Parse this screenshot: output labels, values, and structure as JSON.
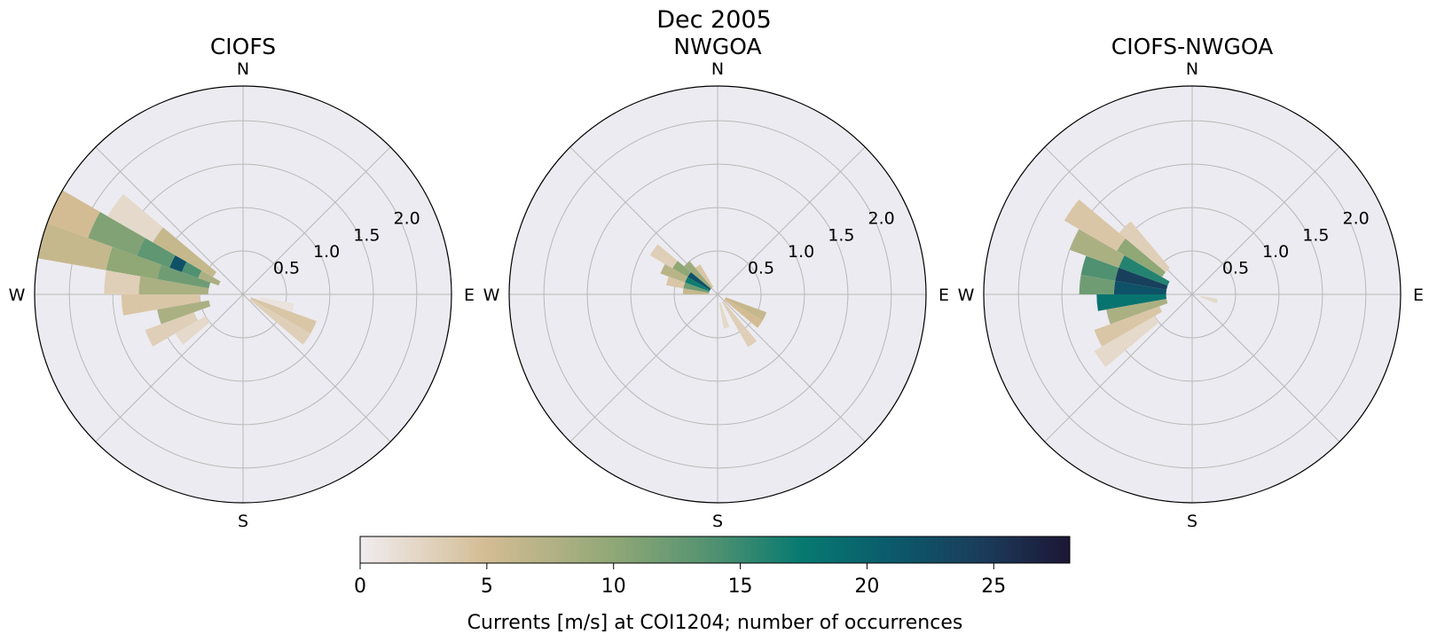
{
  "title": "Dec 2005",
  "colors": {
    "face": "#ecebf1",
    "grid": "#b8b8b8",
    "colormap": [
      "#f0ecef",
      "#d3bc93",
      "#8fa776",
      "#4f9171",
      "#077a70",
      "#0b5a6c",
      "#1b3b5a",
      "#1d1635"
    ]
  },
  "chart_data": [
    {
      "type": "heatmap",
      "subtype": "polar-rose",
      "title": "CIOFS",
      "compass_labels": [
        "N",
        "E",
        "S",
        "W"
      ],
      "radial_ticks": [
        "0.5",
        "1.0",
        "1.5",
        "2.0"
      ],
      "rlim": [
        0,
        2.4
      ],
      "r_bin": 0.1,
      "theta_bin_deg": 10,
      "cells": [
        {
          "dir": 295,
          "speed_from": 1.9,
          "speed_to": 2.4,
          "count": 5
        },
        {
          "dir": 295,
          "speed_from": 1.3,
          "speed_to": 1.9,
          "count": 11
        },
        {
          "dir": 295,
          "speed_from": 0.9,
          "speed_to": 1.3,
          "count": 13
        },
        {
          "dir": 295,
          "speed_from": 0.75,
          "speed_to": 0.9,
          "count": 22
        },
        {
          "dir": 295,
          "speed_from": 0.55,
          "speed_to": 0.75,
          "count": 14
        },
        {
          "dir": 295,
          "speed_from": 0.3,
          "speed_to": 0.55,
          "count": 8
        },
        {
          "dir": 285,
          "speed_from": 1.6,
          "speed_to": 2.4,
          "count": 6
        },
        {
          "dir": 285,
          "speed_from": 1.0,
          "speed_to": 1.6,
          "count": 10
        },
        {
          "dir": 285,
          "speed_from": 0.4,
          "speed_to": 1.0,
          "count": 12
        },
        {
          "dir": 275,
          "speed_from": 1.2,
          "speed_to": 1.6,
          "count": 3
        },
        {
          "dir": 275,
          "speed_from": 0.4,
          "speed_to": 1.2,
          "count": 8
        },
        {
          "dir": 265,
          "speed_from": 0.5,
          "speed_to": 1.4,
          "count": 4
        },
        {
          "dir": 255,
          "speed_from": 0.4,
          "speed_to": 1.0,
          "count": 8
        },
        {
          "dir": 245,
          "speed_from": 0.6,
          "speed_to": 1.2,
          "count": 3
        },
        {
          "dir": 235,
          "speed_from": 0.5,
          "speed_to": 0.9,
          "count": 2
        },
        {
          "dir": 305,
          "speed_from": 1.2,
          "speed_to": 1.8,
          "count": 2
        },
        {
          "dir": 305,
          "speed_from": 0.4,
          "speed_to": 1.2,
          "count": 6
        },
        {
          "dir": 125,
          "speed_from": 0.1,
          "speed_to": 0.9,
          "count": 3
        },
        {
          "dir": 115,
          "speed_from": 0.1,
          "speed_to": 0.9,
          "count": 4
        },
        {
          "dir": 105,
          "speed_from": 0.2,
          "speed_to": 0.6,
          "count": 1
        }
      ]
    },
    {
      "type": "heatmap",
      "subtype": "polar-rose",
      "title": "NWGOA",
      "compass_labels": [
        "N",
        "E",
        "S",
        "W"
      ],
      "radial_ticks": [
        "0.5",
        "1.0",
        "1.5",
        "2.0"
      ],
      "rlim": [
        0,
        2.4
      ],
      "r_bin": 0.1,
      "theta_bin_deg": 10,
      "cells": [
        {
          "dir": 305,
          "speed_from": 0.1,
          "speed_to": 0.4,
          "count": 22
        },
        {
          "dir": 305,
          "speed_from": 0.4,
          "speed_to": 0.6,
          "count": 10
        },
        {
          "dir": 305,
          "speed_from": 0.6,
          "speed_to": 0.9,
          "count": 3
        },
        {
          "dir": 295,
          "speed_from": 0.1,
          "speed_to": 0.4,
          "count": 17
        },
        {
          "dir": 295,
          "speed_from": 0.4,
          "speed_to": 0.7,
          "count": 7
        },
        {
          "dir": 285,
          "speed_from": 0.1,
          "speed_to": 0.4,
          "count": 12
        },
        {
          "dir": 285,
          "speed_from": 0.4,
          "speed_to": 0.6,
          "count": 4
        },
        {
          "dir": 275,
          "speed_from": 0.1,
          "speed_to": 0.4,
          "count": 6
        },
        {
          "dir": 315,
          "speed_from": 0.1,
          "speed_to": 0.5,
          "count": 9
        },
        {
          "dir": 325,
          "speed_from": 0.1,
          "speed_to": 0.4,
          "count": 4
        },
        {
          "dir": 115,
          "speed_from": 0.1,
          "speed_to": 0.6,
          "count": 6
        },
        {
          "dir": 125,
          "speed_from": 0.1,
          "speed_to": 0.6,
          "count": 5
        },
        {
          "dir": 145,
          "speed_from": 0.1,
          "speed_to": 0.7,
          "count": 3
        },
        {
          "dir": 165,
          "speed_from": 0.1,
          "speed_to": 0.4,
          "count": 2
        }
      ]
    },
    {
      "type": "heatmap",
      "subtype": "polar-rose",
      "title": "CIOFS-NWGOA",
      "compass_labels": [
        "N",
        "E",
        "S",
        "W"
      ],
      "radial_ticks": [
        "0.5",
        "1.0",
        "1.5",
        "2.0"
      ],
      "rlim": [
        0,
        2.4
      ],
      "r_bin": 0.1,
      "theta_bin_deg": 10,
      "cells": [
        {
          "dir": 285,
          "speed_from": 0.3,
          "speed_to": 0.9,
          "count": 24
        },
        {
          "dir": 285,
          "speed_from": 0.9,
          "speed_to": 1.3,
          "count": 14
        },
        {
          "dir": 275,
          "speed_from": 0.3,
          "speed_to": 0.9,
          "count": 22
        },
        {
          "dir": 275,
          "speed_from": 0.9,
          "speed_to": 1.3,
          "count": 12
        },
        {
          "dir": 265,
          "speed_from": 0.3,
          "speed_to": 1.1,
          "count": 18
        },
        {
          "dir": 295,
          "speed_from": 0.3,
          "speed_to": 0.9,
          "count": 16
        },
        {
          "dir": 295,
          "speed_from": 0.9,
          "speed_to": 1.5,
          "count": 8
        },
        {
          "dir": 305,
          "speed_from": 0.4,
          "speed_to": 1.0,
          "count": 10
        },
        {
          "dir": 305,
          "speed_from": 1.0,
          "speed_to": 1.7,
          "count": 4
        },
        {
          "dir": 255,
          "speed_from": 0.3,
          "speed_to": 1.0,
          "count": 8
        },
        {
          "dir": 245,
          "speed_from": 0.4,
          "speed_to": 1.2,
          "count": 4
        },
        {
          "dir": 235,
          "speed_from": 0.5,
          "speed_to": 1.3,
          "count": 2
        },
        {
          "dir": 315,
          "speed_from": 0.4,
          "speed_to": 1.1,
          "count": 3
        },
        {
          "dir": 105,
          "speed_from": 0.1,
          "speed_to": 0.3,
          "count": 2
        }
      ]
    }
  ],
  "colorbar": {
    "label": "Currents [m/s] at COI1204; number of occurrences",
    "ticks": [
      "0",
      "5",
      "10",
      "15",
      "20",
      "25"
    ],
    "range": [
      0,
      28
    ]
  }
}
